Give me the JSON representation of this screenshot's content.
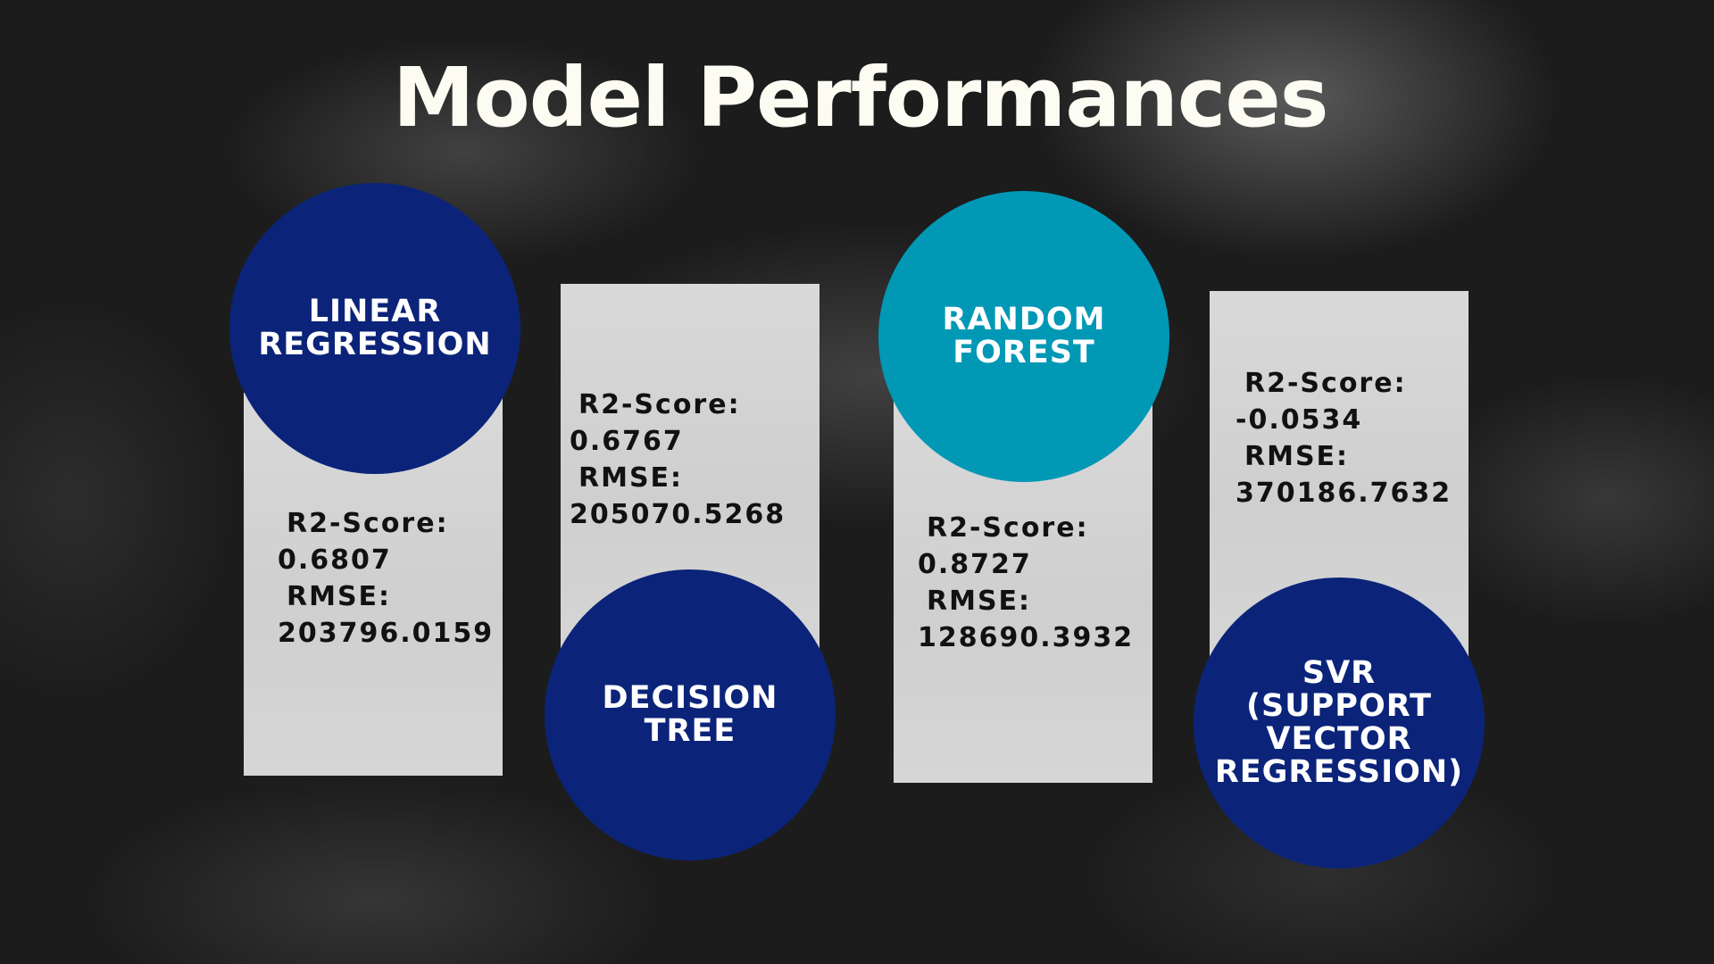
{
  "slide": {
    "title": "Model Performances",
    "colors": {
      "background": "#1c1c1c",
      "title_text": "#fdfcf3",
      "card": "#d6d6d6",
      "navy_circle": "#0b2479",
      "teal_circle": "#0198b6"
    }
  },
  "models": [
    {
      "name": "LINEAR\nREGRESSION",
      "r2_label": "R2-Score:",
      "r2_value": "0.6807",
      "rmse_label": "RMSE:",
      "rmse_value": "203796.0159"
    },
    {
      "name": "DECISION\nTREE",
      "r2_label": "R2-Score:",
      "r2_value": "0.6767",
      "rmse_label": "RMSE:",
      "rmse_value": "205070.5268"
    },
    {
      "name": "RANDOM\nFOREST",
      "r2_label": "R2-Score:",
      "r2_value": "0.8727",
      "rmse_label": "RMSE:",
      "rmse_value": "128690.3932"
    },
    {
      "name": "SVR\n(SUPPORT\nVECTOR\nREGRESSION)",
      "r2_label": "R2-Score:",
      "r2_value": "-0.0534",
      "rmse_label": "RMSE:",
      "rmse_value": "370186.7632"
    }
  ]
}
